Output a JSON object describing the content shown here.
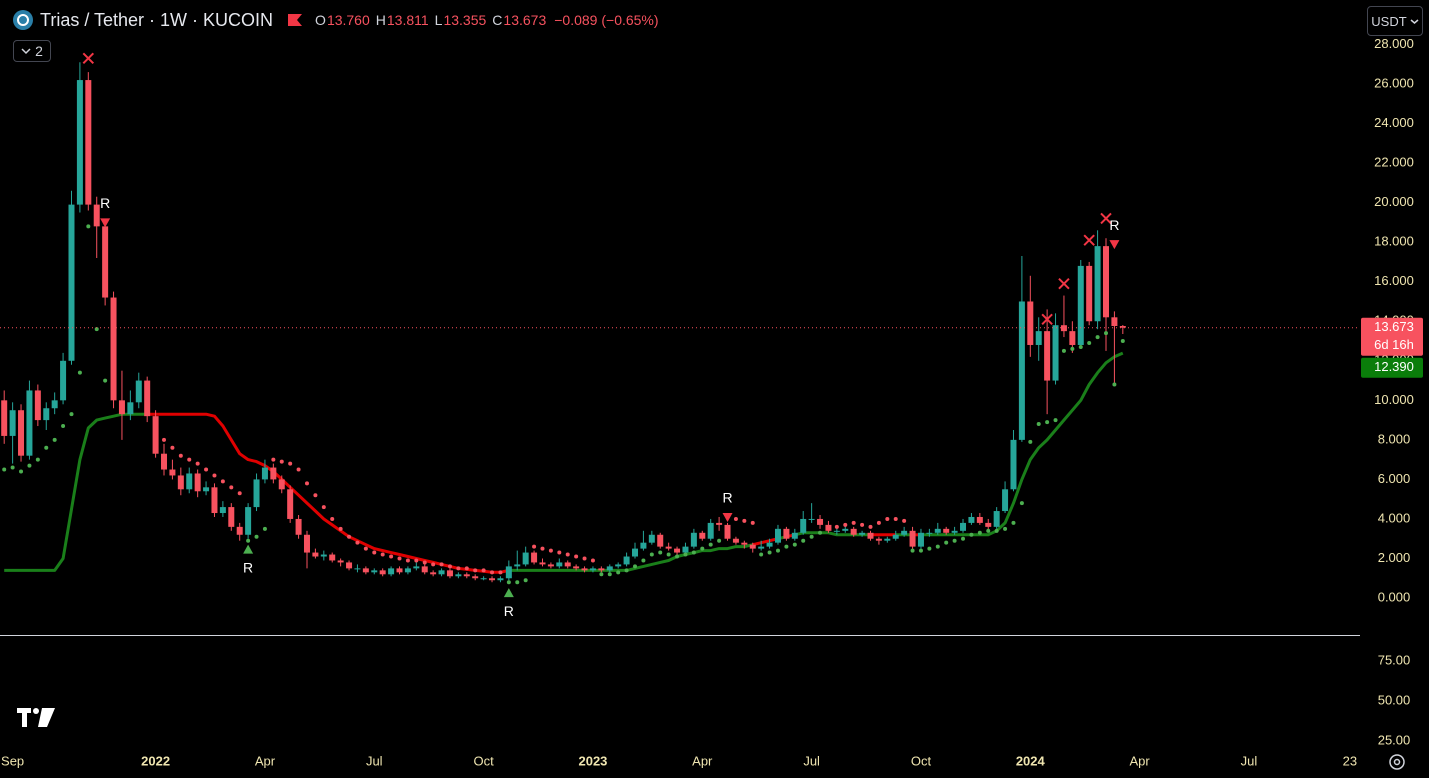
{
  "header": {
    "symbol": "Trias / Tether · 1W · KUCOIN",
    "ohlc": [
      {
        "key": "O",
        "value": "13.760"
      },
      {
        "key": "H",
        "value": "13.811"
      },
      {
        "key": "L",
        "value": "13.355"
      },
      {
        "key": "C",
        "value": "13.673"
      }
    ],
    "change": "−0.089 (−0.65%)",
    "indicators": "2",
    "currency": "USDT"
  },
  "chart_data": {
    "type": "candlestick",
    "up_color": "#26a69a",
    "down_color": "#f7525f",
    "xlim": [
      -0.5,
      161.2
    ],
    "xticks": [
      {
        "value": 1,
        "label": "Sep"
      },
      {
        "value": 18,
        "label": "2022"
      },
      {
        "value": 31,
        "label": "Apr"
      },
      {
        "value": 44,
        "label": "Jul"
      },
      {
        "value": 57,
        "label": "Oct"
      },
      {
        "value": 70,
        "label": "2023"
      },
      {
        "value": 83,
        "label": "Apr"
      },
      {
        "value": 96,
        "label": "Jul"
      },
      {
        "value": 109,
        "label": "Oct"
      },
      {
        "value": 122,
        "label": "2024"
      },
      {
        "value": 135,
        "label": "Apr"
      },
      {
        "value": 148,
        "label": "Jul"
      },
      {
        "value": 160,
        "label": "23"
      }
    ],
    "ylim": [
      -1.87,
      30.25
    ],
    "yticks": [
      {
        "value": 0,
        "label": "0.000"
      },
      {
        "value": 2,
        "label": "2.000"
      },
      {
        "value": 4,
        "label": "4.000"
      },
      {
        "value": 6,
        "label": "6.000"
      },
      {
        "value": 8,
        "label": "8.000"
      },
      {
        "value": 10,
        "label": "10.000"
      },
      {
        "value": 12,
        "label": "12.000"
      },
      {
        "value": 14,
        "label": "14.000"
      },
      {
        "value": 16,
        "label": "16.000"
      },
      {
        "value": 18,
        "label": "18.000"
      },
      {
        "value": 20,
        "label": "20.000"
      },
      {
        "value": 22,
        "label": "22.000"
      },
      {
        "value": 24,
        "label": "24.000"
      },
      {
        "value": 26,
        "label": "26.000"
      },
      {
        "value": 28,
        "label": "28.000"
      }
    ],
    "grid": false,
    "open": [
      10,
      8.2,
      9.5,
      7.2,
      10.5,
      9.0,
      9.6,
      10.0,
      12.0,
      19.9,
      26.2,
      19.9,
      18.8,
      15.2,
      10.0,
      9.3,
      9.9,
      11.0,
      9.2,
      7.3,
      6.5,
      6.2,
      5.5,
      6.3,
      5.4,
      5.6,
      4.3,
      4.6,
      3.6,
      3.2,
      4.6,
      6.0,
      6.6,
      6.0,
      5.5,
      4.0,
      3.2,
      2.3,
      2.1,
      2.2,
      1.9,
      1.8,
      1.5,
      1.5,
      1.3,
      1.4,
      1.2,
      1.5,
      1.3,
      1.5,
      1.6,
      1.3,
      1.2,
      1.4,
      1.1,
      1.2,
      1.1,
      1.0,
      1.0,
      0.9,
      1.0,
      1.6,
      1.7,
      2.3,
      1.8,
      1.7,
      1.6,
      1.8,
      1.6,
      1.5,
      1.4,
      1.5,
      1.4,
      1.6,
      1.7,
      2.1,
      2.5,
      2.8,
      3.2,
      2.6,
      2.5,
      2.3,
      2.6,
      3.3,
      3.0,
      3.8,
      3.7,
      3.0,
      2.8,
      2.7,
      2.5,
      2.6,
      2.8,
      3.5,
      3.0,
      3.3,
      4.0,
      4.0,
      3.7,
      3.4,
      3.4,
      3.5,
      3.2,
      3.3,
      3.0,
      2.9,
      3.0,
      3.2,
      3.4,
      2.6,
      3.3,
      3.3,
      3.5,
      3.3,
      3.4,
      3.8,
      4.1,
      3.8,
      3.6,
      4.4,
      5.5,
      8.0,
      15.0,
      12.8,
      13.5,
      11.0,
      13.8,
      13.5,
      12.8,
      16.8,
      14.0,
      17.8,
      14.2,
      13.76
    ],
    "high": [
      10.5,
      9.9,
      9.8,
      11.0,
      10.8,
      9.9,
      10.4,
      12.4,
      20.6,
      27.1,
      26.6,
      20.3,
      18.9,
      15.5,
      11.5,
      10.5,
      11.4,
      11.2,
      9.5,
      7.8,
      7.0,
      6.6,
      6.6,
      6.5,
      5.9,
      5.8,
      4.9,
      4.8,
      3.8,
      4.8,
      6.3,
      7.0,
      6.8,
      6.2,
      5.7,
      4.2,
      3.4,
      2.5,
      2.4,
      2.3,
      2.0,
      1.9,
      1.7,
      1.6,
      1.5,
      1.5,
      1.6,
      1.6,
      1.6,
      1.8,
      1.7,
      1.4,
      1.5,
      1.5,
      1.3,
      1.3,
      1.2,
      1.1,
      1.1,
      1.1,
      1.9,
      2.4,
      2.6,
      2.4,
      2.0,
      1.8,
      2.0,
      1.9,
      1.7,
      1.6,
      1.6,
      1.6,
      1.7,
      1.8,
      2.3,
      2.8,
      3.4,
      3.4,
      3.3,
      2.8,
      2.6,
      2.8,
      3.5,
      3.4,
      4.0,
      4.1,
      3.8,
      3.1,
      2.9,
      2.8,
      2.9,
      3.0,
      3.7,
      3.6,
      3.5,
      4.4,
      4.8,
      4.2,
      3.9,
      3.6,
      3.7,
      3.6,
      3.4,
      3.4,
      3.1,
      3.1,
      3.4,
      3.6,
      3.6,
      3.5,
      3.5,
      3.8,
      3.6,
      3.6,
      4.0,
      4.3,
      4.3,
      4.0,
      4.6,
      5.9,
      8.5,
      17.3,
      16.3,
      14.2,
      14.6,
      14.4,
      15.3,
      14.0,
      17.1,
      17.0,
      18.6,
      18.2,
      14.5,
      13.811
    ],
    "low": [
      7.8,
      6.8,
      6.9,
      7.0,
      8.7,
      8.5,
      9.3,
      9.8,
      11.8,
      19.5,
      19.6,
      17.2,
      14.8,
      9.6,
      8.0,
      9.0,
      9.6,
      8.9,
      7.1,
      6.2,
      6.0,
      5.2,
      5.3,
      5.1,
      5.2,
      4.1,
      4.1,
      3.4,
      2.9,
      3.0,
      4.4,
      5.8,
      5.8,
      5.3,
      3.8,
      3.0,
      1.5,
      2.0,
      1.9,
      1.8,
      1.6,
      1.4,
      1.3,
      1.2,
      1.2,
      1.1,
      1.1,
      1.2,
      1.2,
      1.4,
      1.2,
      1.1,
      1.1,
      1.0,
      1.0,
      1.0,
      0.9,
      0.9,
      0.8,
      0.8,
      0.9,
      1.4,
      1.6,
      1.7,
      1.6,
      1.5,
      1.5,
      1.5,
      1.4,
      1.3,
      1.3,
      1.3,
      1.3,
      1.5,
      1.6,
      2.0,
      2.4,
      2.7,
      2.5,
      2.4,
      2.1,
      2.2,
      2.5,
      2.9,
      2.9,
      3.4,
      2.9,
      2.7,
      2.5,
      2.3,
      2.4,
      2.5,
      2.7,
      2.9,
      2.9,
      3.2,
      3.8,
      3.5,
      3.3,
      3.2,
      3.3,
      3.1,
      3.1,
      2.9,
      2.7,
      2.8,
      2.9,
      3.1,
      2.4,
      2.5,
      3.1,
      3.2,
      3.2,
      3.2,
      3.3,
      3.7,
      3.7,
      3.4,
      3.5,
      4.3,
      5.4,
      7.9,
      12.2,
      12.0,
      9.3,
      10.8,
      13.2,
      12.4,
      12.6,
      13.8,
      13.6,
      12.5,
      10.8,
      13.355
    ],
    "close": [
      8.2,
      9.5,
      7.2,
      10.5,
      9.0,
      9.6,
      10.0,
      12.0,
      19.9,
      26.2,
      19.9,
      18.8,
      15.2,
      10.0,
      9.3,
      9.9,
      11.0,
      9.2,
      7.3,
      6.5,
      6.2,
      5.5,
      6.3,
      5.4,
      5.6,
      4.3,
      4.6,
      3.6,
      3.2,
      4.6,
      6.0,
      6.6,
      6.0,
      5.5,
      4.0,
      3.2,
      2.3,
      2.1,
      2.2,
      1.9,
      1.8,
      1.5,
      1.5,
      1.3,
      1.4,
      1.2,
      1.5,
      1.3,
      1.5,
      1.6,
      1.3,
      1.2,
      1.4,
      1.1,
      1.2,
      1.1,
      1.0,
      1.0,
      0.9,
      1.0,
      1.6,
      1.7,
      2.3,
      1.8,
      1.7,
      1.6,
      1.8,
      1.6,
      1.5,
      1.4,
      1.5,
      1.4,
      1.6,
      1.7,
      2.1,
      2.5,
      2.8,
      3.2,
      2.6,
      2.5,
      2.3,
      2.6,
      3.3,
      3.0,
      3.8,
      3.7,
      3.0,
      2.8,
      2.7,
      2.5,
      2.6,
      2.8,
      3.5,
      3.0,
      3.3,
      4.0,
      4.0,
      3.7,
      3.4,
      3.4,
      3.5,
      3.2,
      3.3,
      3.0,
      2.9,
      3.0,
      3.2,
      3.4,
      2.6,
      3.3,
      3.3,
      3.5,
      3.3,
      3.4,
      3.8,
      4.1,
      3.8,
      3.6,
      4.4,
      5.5,
      8.0,
      15.0,
      12.8,
      13.5,
      11.0,
      13.8,
      13.5,
      12.8,
      16.8,
      14.0,
      17.8,
      14.2,
      13.76,
      13.673
    ],
    "last_price_label": "13.673",
    "countdown": "6d 16h",
    "trend": {
      "up_color": "#1a7f1a",
      "down_color": "#e00000",
      "last_label": "12.390",
      "values": [
        1.4,
        1.4,
        1.4,
        1.4,
        1.4,
        1.4,
        1.4,
        2.0,
        4.5,
        7.0,
        8.6,
        9.0,
        9.1,
        9.2,
        9.3,
        9.3,
        9.3,
        9.3,
        9.3,
        9.3,
        9.3,
        9.3,
        9.3,
        9.3,
        9.3,
        9.2,
        8.7,
        8.0,
        7.3,
        7.0,
        6.9,
        6.7,
        6.4,
        6.0,
        5.6,
        5.2,
        4.8,
        4.4,
        4.0,
        3.7,
        3.4,
        3.1,
        2.9,
        2.7,
        2.5,
        2.4,
        2.3,
        2.2,
        2.1,
        2.0,
        1.9,
        1.8,
        1.7,
        1.6,
        1.5,
        1.45,
        1.4,
        1.35,
        1.3,
        1.3,
        1.4,
        1.4,
        1.4,
        1.4,
        1.4,
        1.4,
        1.4,
        1.4,
        1.4,
        1.4,
        1.4,
        1.4,
        1.4,
        1.4,
        1.4,
        1.5,
        1.6,
        1.7,
        1.8,
        1.9,
        2.1,
        2.2,
        2.3,
        2.4,
        2.4,
        2.5,
        2.5,
        2.6,
        2.6,
        2.7,
        2.8,
        2.9,
        3.0,
        3.1,
        3.2,
        3.3,
        3.3,
        3.3,
        3.3,
        3.2,
        3.2,
        3.2,
        3.2,
        3.2,
        3.2,
        3.2,
        3.2,
        3.2,
        3.2,
        3.2,
        3.2,
        3.2,
        3.2,
        3.2,
        3.2,
        3.2,
        3.2,
        3.2,
        3.4,
        3.8,
        4.8,
        6.0,
        7.0,
        7.6,
        8.0,
        8.5,
        9.0,
        9.5,
        10.0,
        10.8,
        11.4,
        11.9,
        12.2,
        12.39
      ]
    },
    "sar": {
      "up_color": "#4caf50",
      "down_color": "#f7525f",
      "values": [
        6.5,
        6.6,
        6.4,
        6.7,
        7.0,
        7.6,
        8.0,
        8.7,
        9.3,
        11.4,
        18.8,
        13.6,
        11.0,
        null,
        null,
        null,
        null,
        null,
        null,
        8.0,
        7.6,
        7.2,
        7.0,
        6.8,
        6.5,
        6.2,
        5.9,
        5.6,
        5.3,
        2.9,
        3.1,
        3.5,
        7.0,
        6.9,
        6.8,
        6.5,
        5.8,
        5.2,
        4.6,
        4.0,
        3.5,
        3.1,
        2.8,
        2.5,
        2.3,
        2.2,
        2.1,
        2.0,
        1.9,
        1.9,
        1.8,
        1.7,
        1.7,
        1.6,
        1.5,
        1.5,
        1.4,
        1.4,
        1.3,
        1.3,
        0.8,
        0.8,
        0.9,
        2.6,
        2.5,
        2.4,
        2.3,
        2.2,
        2.1,
        2.0,
        1.9,
        1.2,
        1.2,
        1.3,
        1.4,
        1.6,
        1.9,
        2.2,
        2.3,
        2.2,
        2.1,
        2.2,
        2.3,
        2.5,
        2.7,
        2.9,
        4.1,
        4.0,
        3.9,
        3.8,
        2.2,
        2.3,
        2.4,
        2.6,
        2.7,
        2.9,
        3.1,
        3.3,
        3.5,
        3.6,
        3.7,
        3.8,
        3.7,
        3.6,
        3.8,
        4.0,
        4.0,
        3.9,
        2.4,
        2.4,
        2.5,
        2.6,
        2.8,
        2.9,
        3.0,
        3.2,
        3.3,
        3.4,
        3.4,
        3.5,
        3.8,
        4.8,
        7.9,
        8.8,
        8.9,
        9.0,
        12.5,
        12.6,
        12.7,
        12.9,
        13.2,
        13.4,
        10.8,
        13.0
      ]
    },
    "signals": [
      {
        "x": 10,
        "y": 27.3,
        "shape": "cross"
      },
      {
        "x": 12,
        "y": 19.0,
        "shape": "triangle-down",
        "label": "R"
      },
      {
        "x": 29,
        "y": 2.5,
        "shape": "triangle-up",
        "label": "R"
      },
      {
        "x": 60,
        "y": 0.3,
        "shape": "triangle-up",
        "label": "R"
      },
      {
        "x": 86,
        "y": 4.1,
        "shape": "triangle-down",
        "label": "R"
      },
      {
        "x": 124,
        "y": 14.1,
        "shape": "cross"
      },
      {
        "x": 126,
        "y": 15.9,
        "shape": "cross"
      },
      {
        "x": 129,
        "y": 18.1,
        "shape": "cross"
      },
      {
        "x": 131,
        "y": 19.2,
        "shape": "cross"
      },
      {
        "x": 132,
        "y": 17.9,
        "shape": "triangle-down",
        "label": "R"
      }
    ],
    "lower_pane": {
      "ylim": [
        22.5,
        90.6
      ],
      "yticks": [
        {
          "value": 75,
          "label": "75.00"
        },
        {
          "value": 50,
          "label": "50.00"
        },
        {
          "value": 25,
          "label": "25.00"
        }
      ]
    }
  }
}
